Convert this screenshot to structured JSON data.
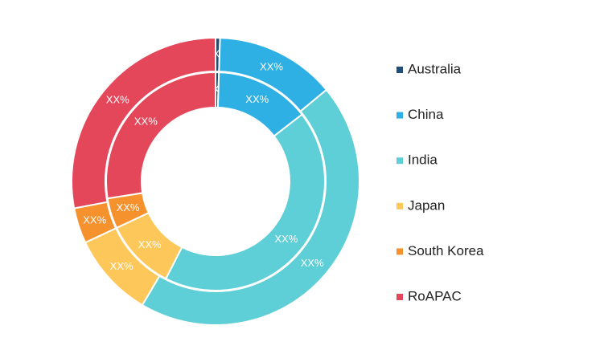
{
  "chart_data": {
    "type": "donut",
    "categories": [
      "Australia",
      "China",
      "India",
      "Japan",
      "South Korea",
      "RoAPAC"
    ],
    "colors": [
      "#1f4e79",
      "#2eb0e4",
      "#5ecfd6",
      "#fdc75a",
      "#f6922d",
      "#e5475a"
    ],
    "series": [
      {
        "values": [
          0.5,
          14,
          43,
          10.5,
          4.5,
          27.5
        ],
        "value_labels": [
          "XX%",
          "XX%",
          "XX%",
          "XX%",
          "XX%",
          "XX%"
        ]
      },
      {
        "values": [
          0.5,
          13.5,
          44.5,
          9.5,
          4,
          28
        ],
        "value_labels": [
          "XX%",
          "XX%",
          "XX%",
          "XX%",
          "XX%",
          "XX%"
        ]
      }
    ],
    "legend": "right"
  }
}
